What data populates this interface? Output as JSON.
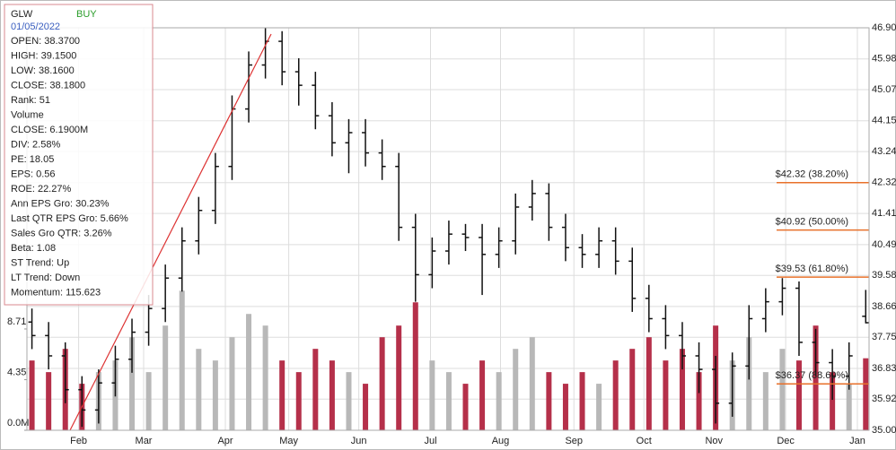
{
  "chart_data": {
    "type": "ohlc",
    "open": [
      38.2,
      37.8,
      37.2,
      36.2,
      35.6,
      36.4,
      37.1,
      37.9,
      38.6,
      39.5,
      40.6,
      41.5,
      42.8,
      44.5,
      45.8,
      46.5,
      45.6,
      45.2,
      44.3,
      43.5,
      43.8,
      43.2,
      42.8,
      41.0,
      39.6,
      40.3,
      40.8,
      40.7,
      40.2,
      40.6,
      41.6,
      42.0,
      41.0,
      40.4,
      40.2,
      40.6,
      40.0,
      38.9,
      38.3,
      37.8,
      37.2,
      36.8,
      35.8,
      36.9,
      38.3,
      38.8,
      39.2,
      37.6,
      37.0,
      36.6,
      38.37
    ],
    "high": [
      38.6,
      38.2,
      37.6,
      36.6,
      36.8,
      37.5,
      38.3,
      39.0,
      39.9,
      41.0,
      41.9,
      43.2,
      44.9,
      46.2,
      46.9,
      46.8,
      46.0,
      45.6,
      44.7,
      44.2,
      44.2,
      43.6,
      43.2,
      41.4,
      40.7,
      41.2,
      41.1,
      41.1,
      41.0,
      42.0,
      42.4,
      42.3,
      41.4,
      40.8,
      41.0,
      41.0,
      40.4,
      39.3,
      38.7,
      38.2,
      37.6,
      37.2,
      37.3,
      38.7,
      39.2,
      39.5,
      39.4,
      38.0,
      37.4,
      37.6,
      39.15
    ],
    "low": [
      37.4,
      36.8,
      35.8,
      35.1,
      35.2,
      36.0,
      36.7,
      37.5,
      38.2,
      39.1,
      40.2,
      41.1,
      42.4,
      44.1,
      45.4,
      45.2,
      44.6,
      43.9,
      43.1,
      42.6,
      42.8,
      42.4,
      40.6,
      38.8,
      39.2,
      39.9,
      40.3,
      39.0,
      39.8,
      40.2,
      41.2,
      40.6,
      40.0,
      39.8,
      39.8,
      39.6,
      38.5,
      37.9,
      37.4,
      36.8,
      36.1,
      35.2,
      35.4,
      36.5,
      37.9,
      38.4,
      37.2,
      36.6,
      35.9,
      36.2,
      38.16
    ],
    "close": [
      37.8,
      37.2,
      36.2,
      35.6,
      36.4,
      37.1,
      37.9,
      38.6,
      39.5,
      40.6,
      41.5,
      42.8,
      44.5,
      45.8,
      46.5,
      45.6,
      45.2,
      44.3,
      43.5,
      43.8,
      43.2,
      42.8,
      41.0,
      39.6,
      40.3,
      40.8,
      40.7,
      40.2,
      40.6,
      41.6,
      42.0,
      41.0,
      40.4,
      40.2,
      40.6,
      40.0,
      38.9,
      38.3,
      37.8,
      37.2,
      36.8,
      35.8,
      36.9,
      38.3,
      38.8,
      39.2,
      37.6,
      37.0,
      36.6,
      37.2,
      38.18
    ],
    "volume": [
      6,
      5,
      7,
      4,
      5,
      6,
      8,
      5,
      9,
      12,
      7,
      6,
      8,
      10,
      9,
      6,
      5,
      7,
      6,
      5,
      4,
      8,
      9,
      11,
      6,
      5,
      4,
      6,
      5,
      7,
      8,
      5,
      4,
      5,
      4,
      6,
      7,
      8,
      6,
      7,
      5,
      9,
      6,
      8,
      5,
      7,
      6,
      9,
      5,
      4,
      6.19
    ],
    "up_color": "#111111",
    "down_color": "#111111",
    "volume_up_color": "#b8b8b8",
    "volume_down_color": "#b5304a",
    "xlim": [
      -0.3,
      50.2
    ],
    "xticks": [
      {
        "value": 2.8,
        "label": "Feb"
      },
      {
        "value": 6.7,
        "label": "Mar"
      },
      {
        "value": 11.6,
        "label": "Apr"
      },
      {
        "value": 15.4,
        "label": "May"
      },
      {
        "value": 19.6,
        "label": "Jun"
      },
      {
        "value": 23.9,
        "label": "Jul"
      },
      {
        "value": 28.1,
        "label": "Aug"
      },
      {
        "value": 32.5,
        "label": "Sep"
      },
      {
        "value": 36.7,
        "label": "Oct"
      },
      {
        "value": 40.9,
        "label": "Nov"
      },
      {
        "value": 45.2,
        "label": "Dec"
      },
      {
        "value": 49.5,
        "label": "Jan"
      }
    ],
    "ylim": [
      35,
      46.9
    ],
    "yticks": [
      {
        "value": 46.9,
        "label": "46.90"
      },
      45.98,
      45.07,
      44.15,
      43.24,
      42.32,
      41.41,
      40.49,
      39.58,
      38.66,
      37.75,
      36.83,
      35.92,
      {
        "value": 35,
        "label": "35.00"
      }
    ],
    "y2lim": [
      0,
      34.6
    ],
    "y2ticks": [
      {
        "value": 0,
        "label": "0.0M"
      },
      4.35,
      8.71
    ],
    "grid": true,
    "levels": [
      {
        "value": 42.32,
        "label": "$42.32 (38.20%)"
      },
      {
        "value": 40.92,
        "label": "$40.92 (50.00%)"
      },
      {
        "value": 39.53,
        "label": "$39.53 (61.80%)"
      },
      {
        "value": 36.37,
        "label": "$36.37 (88.60%)"
      }
    ],
    "level_color": "#e8702a"
  },
  "info_box": {
    "ticker": "GLW",
    "signal": "BUY",
    "date": "01/05/2022",
    "lines": [
      "OPEN: 38.3700",
      "HIGH: 39.1500",
      "LOW: 38.1600",
      "CLOSE: 38.1800",
      "Rank: 51",
      "Volume",
      "CLOSE: 6.1900M",
      "DIV: 2.58%",
      "PE: 18.05",
      "EPS: 0.56",
      "ROE: 22.27%",
      "Ann EPS Gro: 30.23%",
      "Last QTR EPS Gro: 5.66%",
      "Sales Gro QTR: 3.26%",
      "Beta: 1.08",
      "ST Trend: Up",
      "LT Trend: Down",
      "Momentum: 115.623"
    ]
  }
}
